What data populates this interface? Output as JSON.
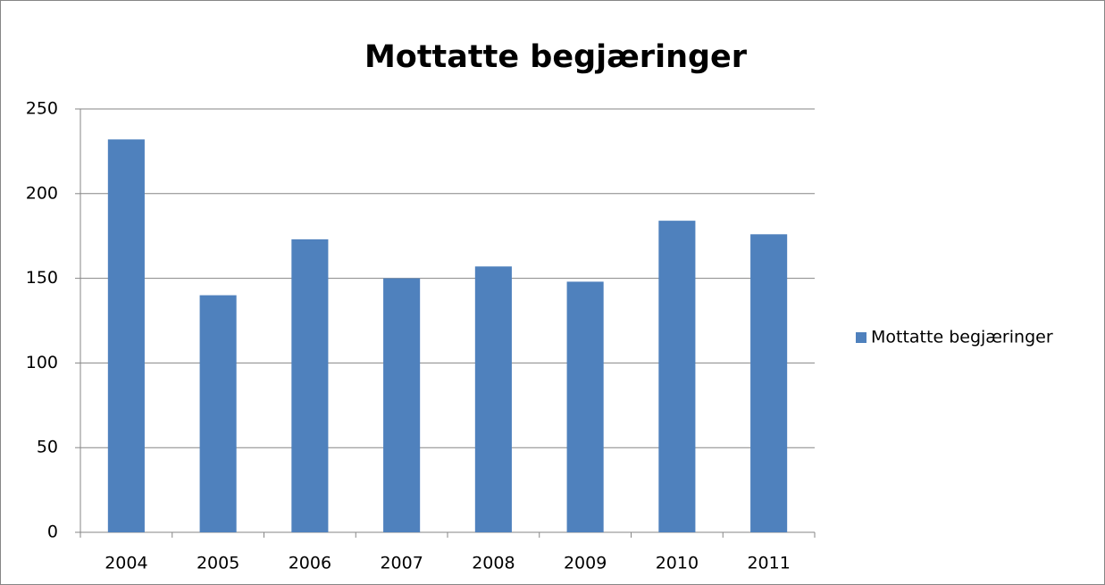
{
  "chart_data": {
    "type": "bar",
    "title": "Mottatte begjæringer",
    "categories": [
      "2004",
      "2005",
      "2006",
      "2007",
      "2008",
      "2009",
      "2010",
      "2011"
    ],
    "series": [
      {
        "name": "Mottatte begjæringer",
        "color": "#4f81bd",
        "values": [
          232,
          140,
          173,
          150,
          157,
          148,
          184,
          176
        ]
      }
    ],
    "ylim": [
      0,
      250
    ],
    "yticks": [
      0,
      50,
      100,
      150,
      200,
      250
    ],
    "grid": true,
    "legend": "right"
  }
}
